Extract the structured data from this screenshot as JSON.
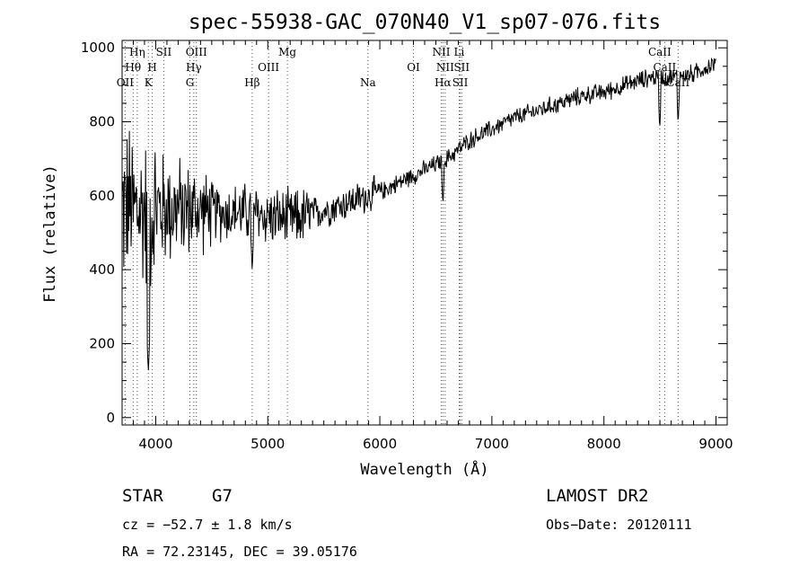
{
  "chart_data": {
    "type": "line",
    "title": "spec-55938-GAC_070N40_V1_sp07-076.fits",
    "xlabel": "Wavelength (Å)",
    "ylabel": "Flux (relative)",
    "xlim": [
      3700,
      9100
    ],
    "ylim": [
      -20,
      1020
    ],
    "xticks": [
      4000,
      5000,
      6000,
      7000,
      8000,
      9000
    ],
    "yticks": [
      0,
      200,
      400,
      600,
      800,
      1000
    ],
    "grid": false,
    "spectrum_anchors": {
      "x": [
        3700,
        3750,
        3800,
        3900,
        4000,
        4200,
        4400,
        4600,
        4800,
        5000,
        5200,
        5400,
        5600,
        5800,
        6000,
        6200,
        6400,
        6600,
        6800,
        7000,
        7200,
        7400,
        7600,
        7800,
        8000,
        8200,
        8400,
        8600,
        8800,
        9000
      ],
      "y": [
        560,
        580,
        560,
        560,
        565,
        565,
        560,
        555,
        555,
        545,
        535,
        550,
        570,
        590,
        610,
        640,
        670,
        700,
        750,
        780,
        810,
        830,
        850,
        870,
        880,
        900,
        920,
        920,
        930,
        960
      ]
    },
    "absorption_dips": [
      {
        "x": 6563,
        "y": 570
      },
      {
        "x": 8498,
        "y": 775
      },
      {
        "x": 8662,
        "y": 790
      },
      {
        "x": 4861,
        "y": 395
      },
      {
        "x": 3934,
        "y": 120
      }
    ],
    "line_markers": [
      {
        "label": "OII",
        "x": 3727,
        "row": 2
      },
      {
        "label": "Hθ",
        "x": 3798,
        "row": 1
      },
      {
        "label": "Hη",
        "x": 3835,
        "row": 0
      },
      {
        "label": "K",
        "x": 3934,
        "row": 2
      },
      {
        "label": "H",
        "x": 3969,
        "row": 1
      },
      {
        "label": "SII",
        "x": 4072,
        "row": 0
      },
      {
        "label": "G",
        "x": 4305,
        "row": 2
      },
      {
        "label": "Hγ",
        "x": 4340,
        "row": 1
      },
      {
        "label": "OIII",
        "x": 4363,
        "row": 0
      },
      {
        "label": "Hβ",
        "x": 4861,
        "row": 2
      },
      {
        "label": "OIII",
        "x": 5007,
        "row": 1
      },
      {
        "label": "Mg",
        "x": 5175,
        "row": 0
      },
      {
        "label": "Na",
        "x": 5894,
        "row": 2
      },
      {
        "label": "OI",
        "x": 6300,
        "row": 1
      },
      {
        "label": "NII",
        "x": 6548,
        "row": 0
      },
      {
        "label": "Hα",
        "x": 6563,
        "row": 2
      },
      {
        "label": "NII",
        "x": 6583,
        "row": 1
      },
      {
        "label": "Li",
        "x": 6708,
        "row": 0
      },
      {
        "label": "SII",
        "x": 6717,
        "row": 2
      },
      {
        "label": "SII",
        "x": 6731,
        "row": 1
      },
      {
        "label": "CaII",
        "x": 8498,
        "row": 0
      },
      {
        "label": "CaII",
        "x": 8542,
        "row": 1
      },
      {
        "label": "CaII",
        "x": 8662,
        "row": 2
      }
    ],
    "colors": {
      "spectrum": "#000000",
      "marker_line": "#e01010",
      "axes": "#000000"
    }
  },
  "info": {
    "object_class": "STAR",
    "subclass": "G7",
    "survey": "LAMOST DR2",
    "cz": "cz = −52.7 ± 1.8 km/s",
    "obs_date": "Obs−Date: 20120111",
    "coords": "RA =  72.23145, DEC =  39.05176"
  }
}
